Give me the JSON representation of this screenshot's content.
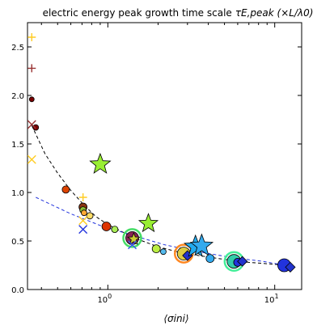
{
  "chart_data": {
    "type": "scatter",
    "title": "electric energy peak growth time scale",
    "title_math": "τE,peak (×L/λ0)",
    "xlabel": "⟨σini⟩",
    "ylabel": "",
    "x_scale": "log",
    "xlim": [
      0.33,
      14.5
    ],
    "ylim": [
      0.0,
      2.75
    ],
    "x_ticks": [
      1,
      10
    ],
    "x_tick_labels": [
      "10^0",
      "10^1"
    ],
    "y_ticks": [
      0.0,
      0.5,
      1.0,
      1.5,
      2.0,
      2.5
    ],
    "y_tick_labels": [
      "0.0",
      "0.5",
      "1.0",
      "1.5",
      "2.0",
      "2.5"
    ],
    "grid": false,
    "legend": "none",
    "fit_lines": [
      {
        "color": "#000000",
        "style": "dashed",
        "points": [
          [
            0.35,
            1.69
          ],
          [
            0.42,
            1.4
          ],
          [
            0.5,
            1.2
          ],
          [
            0.6,
            1.02
          ],
          [
            0.72,
            0.87
          ],
          [
            0.85,
            0.75
          ],
          [
            1.0,
            0.67
          ],
          [
            1.2,
            0.6
          ],
          [
            1.5,
            0.52
          ],
          [
            2.0,
            0.44
          ],
          [
            2.6,
            0.39
          ],
          [
            3.5,
            0.35
          ],
          [
            5.0,
            0.31
          ],
          [
            7.0,
            0.28
          ],
          [
            10.0,
            0.26
          ],
          [
            12.5,
            0.24
          ]
        ]
      },
      {
        "color": "#2233dd",
        "style": "dashed",
        "points": [
          [
            0.37,
            0.95
          ],
          [
            0.6,
            0.78
          ],
          [
            0.9,
            0.66
          ],
          [
            1.4,
            0.56
          ],
          [
            2.2,
            0.46
          ],
          [
            3.5,
            0.39
          ],
          [
            5.5,
            0.33
          ],
          [
            8.5,
            0.29
          ],
          [
            12.5,
            0.24
          ]
        ]
      }
    ],
    "points": [
      {
        "x": 0.35,
        "y": 2.6,
        "marker": "plus",
        "color": "#ffcc22",
        "size": 1
      },
      {
        "x": 0.35,
        "y": 2.28,
        "marker": "plus",
        "color": "#993333",
        "size": 1
      },
      {
        "x": 0.35,
        "y": 1.96,
        "marker": "circle",
        "color": "#7a0000",
        "size": 0.6
      },
      {
        "x": 0.37,
        "y": 1.67,
        "marker": "circle",
        "color": "#7a0000",
        "size": 0.7
      },
      {
        "x": 0.35,
        "y": 1.7,
        "marker": "x",
        "color": "#993333",
        "size": 1
      },
      {
        "x": 0.35,
        "y": 1.34,
        "marker": "x",
        "color": "#ffcc22",
        "size": 1
      },
      {
        "x": 0.56,
        "y": 1.03,
        "marker": "circle",
        "color": "#dd4400",
        "size": 0.9
      },
      {
        "x": 0.71,
        "y": 0.95,
        "marker": "plus",
        "color": "#ffcc22",
        "size": 1
      },
      {
        "x": 0.71,
        "y": 0.85,
        "marker": "circle",
        "color": "#883311",
        "size": 1.0
      },
      {
        "x": 0.71,
        "y": 0.82,
        "marker": "circle",
        "color": "#88bb33",
        "size": 0.8
      },
      {
        "x": 0.72,
        "y": 0.79,
        "marker": "circle",
        "color": "#ffaa33",
        "size": 0.7
      },
      {
        "x": 0.78,
        "y": 0.76,
        "marker": "circle",
        "color": "#ffdd66",
        "size": 0.8
      },
      {
        "x": 0.71,
        "y": 0.71,
        "marker": "x",
        "color": "#ffcc22",
        "size": 1
      },
      {
        "x": 0.71,
        "y": 0.62,
        "marker": "x",
        "color": "#2233dd",
        "size": 1
      },
      {
        "x": 0.9,
        "y": 1.29,
        "marker": "star",
        "color": "#99ee33",
        "size": 1.2
      },
      {
        "x": 0.98,
        "y": 0.65,
        "marker": "circle",
        "color": "#dd3300",
        "size": 1.1
      },
      {
        "x": 1.1,
        "y": 0.62,
        "marker": "circle",
        "color": "#aaee55",
        "size": 0.8
      },
      {
        "x": 1.4,
        "y": 0.53,
        "marker": "circle",
        "color": "#882255",
        "size": 1.6,
        "ring": "#44dd66"
      },
      {
        "x": 1.43,
        "y": 0.52,
        "marker": "star",
        "color": "#cccc33",
        "size": 0.7
      },
      {
        "x": 1.4,
        "y": 0.46,
        "marker": "x",
        "color": "#3355ee",
        "size": 1
      },
      {
        "x": 1.75,
        "y": 0.68,
        "marker": "star",
        "color": "#99ee33",
        "size": 1.1
      },
      {
        "x": 1.95,
        "y": 0.42,
        "marker": "circle",
        "color": "#bbee44",
        "size": 1.0
      },
      {
        "x": 2.15,
        "y": 0.39,
        "marker": "circle",
        "color": "#55bbee",
        "size": 0.7
      },
      {
        "x": 2.85,
        "y": 0.37,
        "marker": "circle",
        "color": "#ddcc44",
        "size": 1.6,
        "ring": "#ff8822"
      },
      {
        "x": 3.0,
        "y": 0.35,
        "marker": "diamond",
        "color": "#2233cc",
        "size": 1.0
      },
      {
        "x": 3.35,
        "y": 0.44,
        "marker": "star",
        "color": "#22aaee",
        "size": 1.3
      },
      {
        "x": 3.65,
        "y": 0.45,
        "marker": "star",
        "color": "#33aaee",
        "size": 1.3
      },
      {
        "x": 4.1,
        "y": 0.32,
        "marker": "circle",
        "color": "#33aaee",
        "size": 1.0
      },
      {
        "x": 5.7,
        "y": 0.29,
        "marker": "circle",
        "color": "#33ccaa",
        "size": 1.7,
        "ring": "#44ee99"
      },
      {
        "x": 6.0,
        "y": 0.28,
        "marker": "circle",
        "color": "#2233dd",
        "size": 1.0
      },
      {
        "x": 6.4,
        "y": 0.29,
        "marker": "diamond",
        "color": "#2233cc",
        "size": 1.0
      },
      {
        "x": 11.4,
        "y": 0.25,
        "marker": "circle",
        "color": "#2233dd",
        "size": 1.6
      },
      {
        "x": 12.4,
        "y": 0.23,
        "marker": "diamond",
        "color": "#2233cc",
        "size": 1.0
      }
    ]
  }
}
